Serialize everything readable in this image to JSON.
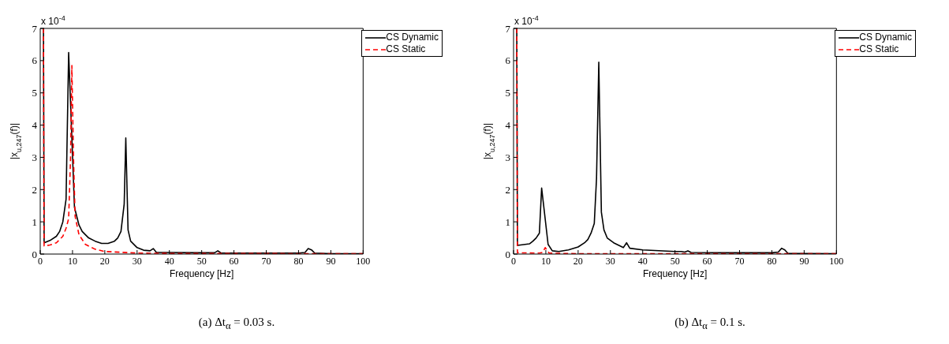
{
  "chart_data": [
    {
      "type": "line",
      "xlabel": "Frequency [Hz]",
      "ylabel": "|x$_{u,247}$(f)|",
      "xlim": [
        0,
        100
      ],
      "xticks": [
        0,
        10,
        20,
        30,
        40,
        50,
        60,
        70,
        80,
        90,
        100
      ],
      "ylim": [
        0,
        7
      ],
      "yticks": [
        0,
        1,
        2,
        3,
        4,
        5,
        6,
        7
      ],
      "grid": false,
      "legend": "top right",
      "marker": "none",
      "annotations": [
        "x 10$^{-4}$",
        "(a) Δt$_{α}$ = 0.03 s."
      ],
      "series": [
        {
          "name": "CS Dynamic",
          "color": "#000000",
          "line_style": "solid",
          "x": [
            1,
            1.2,
            3,
            5,
            6,
            7,
            8,
            8.8,
            10.6,
            12,
            13,
            15,
            17,
            19,
            21,
            23,
            24,
            25,
            26,
            26.5,
            27.2,
            28,
            30,
            32,
            34,
            35,
            36,
            40,
            50,
            54,
            55,
            56,
            70,
            80,
            82,
            83,
            84,
            85,
            90,
            100
          ],
          "values": [
            7,
            0.35,
            0.42,
            0.55,
            0.7,
            1.0,
            1.7,
            6.25,
            1.45,
            0.9,
            0.7,
            0.5,
            0.4,
            0.33,
            0.33,
            0.4,
            0.5,
            0.7,
            1.55,
            3.6,
            0.75,
            0.4,
            0.2,
            0.12,
            0.1,
            0.17,
            0.05,
            0.05,
            0.04,
            0.04,
            0.1,
            0.03,
            0.03,
            0.03,
            0.05,
            0.17,
            0.13,
            0.03,
            0.01,
            0.01
          ]
        },
        {
          "name": "CS Static",
          "color": "#ff0000",
          "line_style": "dashed",
          "x": [
            1,
            1.2,
            3,
            5,
            7,
            8,
            8.8,
            9.4,
            9.8,
            10.3,
            10.8,
            12,
            14,
            17,
            20,
            30,
            40,
            100
          ],
          "values": [
            7,
            0.25,
            0.28,
            0.35,
            0.55,
            0.8,
            1.1,
            3.0,
            5.85,
            3.0,
            1.17,
            0.6,
            0.3,
            0.15,
            0.08,
            0.03,
            0.02,
            0.01
          ]
        }
      ]
    },
    {
      "type": "line",
      "xlabel": "Frequency [Hz]",
      "ylabel": "|x$_{u,247}$(f)|",
      "xlim": [
        0,
        100
      ],
      "xticks": [
        0,
        10,
        20,
        30,
        40,
        50,
        60,
        70,
        80,
        90,
        100
      ],
      "ylim": [
        0,
        7
      ],
      "yticks": [
        0,
        1,
        2,
        3,
        4,
        5,
        6,
        7
      ],
      "grid": false,
      "legend": "top right",
      "marker": "none",
      "annotations": [
        "x 10$^{-4}$",
        "(b) Δt$_{α}$ = 0.1 s."
      ],
      "series": [
        {
          "name": "CS Dynamic",
          "color": "#000000",
          "line_style": "solid",
          "x": [
            1,
            1.2,
            5,
            6,
            7,
            8,
            8.7,
            10.7,
            12,
            14,
            17,
            20,
            22,
            23,
            24,
            25,
            25.7,
            26.4,
            27.2,
            28,
            29,
            31,
            34,
            35,
            36,
            40,
            50,
            52,
            53,
            54,
            55,
            70,
            80,
            82,
            83,
            84,
            85,
            100
          ],
          "values": [
            7,
            0.27,
            0.32,
            0.4,
            0.5,
            0.65,
            2.05,
            0.3,
            0.1,
            0.08,
            0.13,
            0.22,
            0.35,
            0.45,
            0.65,
            0.95,
            2.35,
            5.95,
            1.3,
            0.75,
            0.5,
            0.35,
            0.2,
            0.35,
            0.18,
            0.13,
            0.08,
            0.08,
            0.06,
            0.1,
            0.05,
            0.04,
            0.04,
            0.06,
            0.18,
            0.13,
            0.02,
            0.01
          ]
        },
        {
          "name": "CS Static",
          "color": "#ff0000",
          "line_style": "dashed",
          "x": [
            1,
            1.2,
            8,
            9,
            9.8,
            10.5,
            11,
            20,
            100
          ],
          "values": [
            7,
            0.04,
            0.03,
            0.05,
            0.2,
            0.1,
            0.03,
            0.01,
            0.01
          ]
        }
      ]
    }
  ]
}
